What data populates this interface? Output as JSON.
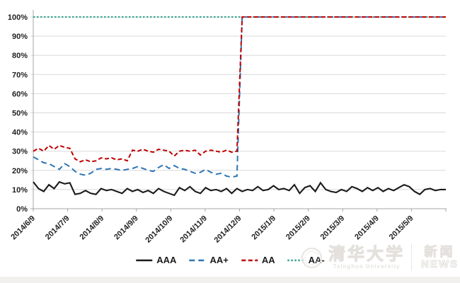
{
  "chart_data": {
    "type": "line",
    "title": "",
    "xlabel": "",
    "ylabel": "",
    "ylim": [
      0,
      100
    ],
    "grid": "horizontal",
    "legend_position": "bottom",
    "y_ticks": [
      "0%",
      "10%",
      "20%",
      "30%",
      "40%",
      "50%",
      "60%",
      "70%",
      "80%",
      "90%",
      "100%"
    ],
    "x_ticks": [
      "2014/6/9",
      "2014/7/9",
      "2014/8/9",
      "2014/9/9",
      "2014/10/9",
      "2014/11/9",
      "2014/12/9",
      "2015/1/9",
      "2015/2/9",
      "2015/3/9",
      "2015/4/9",
      "2015/5/9",
      ""
    ],
    "series": [
      {
        "name": "AAA",
        "color": "#1a1a1a",
        "dash": "solid",
        "values": [
          14,
          10.5,
          9,
          12.5,
          10.5,
          14,
          13,
          13.5,
          7.5,
          8,
          9.5,
          8,
          7.5,
          10.5,
          9.5,
          10,
          9,
          8,
          10.5,
          9,
          10,
          8.5,
          9.5,
          8,
          10.5,
          9,
          8,
          7,
          11,
          9.5,
          11.5,
          9,
          8,
          11,
          9.5,
          10,
          9,
          10.5,
          8,
          10.5,
          9,
          10,
          9.5,
          11.5,
          9.5,
          10,
          12,
          10,
          10.5,
          9.5,
          12.5,
          8,
          11,
          12,
          9,
          13.5,
          10,
          9,
          8.5,
          10,
          9,
          11.5,
          10.5,
          9,
          11,
          9.5,
          11,
          9,
          10.5,
          9.5,
          11,
          12.5,
          11.5,
          9,
          7.5,
          10,
          10.5,
          9.5,
          10,
          10
        ]
      },
      {
        "name": "AA+",
        "color": "#2E75B6",
        "dash": "8 5",
        "values": [
          27,
          25.5,
          24,
          23.5,
          22,
          20.5,
          23.5,
          22,
          19.5,
          18,
          17.5,
          18.5,
          20.5,
          21,
          20.5,
          21,
          20.5,
          20,
          20.5,
          21,
          22,
          21,
          20,
          19.5,
          21.5,
          23,
          21,
          22.5,
          21,
          20.5,
          19.5,
          18.5,
          19,
          20.5,
          19,
          18,
          18.5,
          17,
          16.5,
          17,
          100,
          100,
          100,
          100,
          100,
          100,
          100,
          100,
          100,
          100,
          100,
          100,
          100,
          100,
          100,
          100,
          100,
          100,
          100,
          100,
          100,
          100,
          100,
          100,
          100,
          100,
          100,
          100,
          100,
          100,
          100,
          100,
          100,
          100,
          100,
          100,
          100,
          100,
          100,
          100
        ]
      },
      {
        "name": "AA",
        "color": "#C00000",
        "dash": "6 3.5",
        "values": [
          30,
          31.5,
          30,
          33,
          31,
          33,
          32,
          31.5,
          26,
          24.5,
          25.5,
          24.5,
          25,
          26.5,
          26,
          26.5,
          25.5,
          26,
          25,
          30.5,
          30,
          31,
          30,
          29.5,
          31,
          30.5,
          30,
          27.5,
          30,
          30.5,
          30,
          30.5,
          28,
          30,
          30.5,
          30,
          29.5,
          30.5,
          29.5,
          30,
          100,
          100,
          100,
          100,
          100,
          100,
          100,
          100,
          100,
          100,
          100,
          100,
          100,
          100,
          100,
          100,
          100,
          100,
          100,
          100,
          100,
          100,
          100,
          100,
          100,
          100,
          100,
          100,
          100,
          100,
          100,
          100,
          100,
          100,
          100,
          100,
          100,
          100,
          100,
          100
        ]
      },
      {
        "name": "AA-",
        "color": "#32A391",
        "dash": "2.5 2.5",
        "values": [
          100,
          100,
          100,
          100,
          100,
          100,
          100,
          100,
          100,
          100,
          100,
          100,
          100,
          100,
          100,
          100,
          100,
          100,
          100,
          100,
          100,
          100,
          100,
          100,
          100,
          100,
          100,
          100,
          100,
          100,
          100,
          100,
          100,
          100,
          100,
          100,
          100,
          100,
          100,
          100,
          100,
          100,
          100,
          100,
          100,
          100,
          100,
          100,
          100,
          100,
          100,
          100,
          100,
          100,
          100,
          100,
          100,
          100,
          100,
          100,
          100,
          100,
          100,
          100,
          100,
          100,
          100,
          100,
          100,
          100,
          100,
          100,
          100,
          100,
          100,
          100,
          100,
          100,
          100,
          100
        ]
      }
    ]
  },
  "watermark": {
    "university_cn": "清华大学",
    "university_en": "Tsinghua University",
    "news_cn": "新闻",
    "news_en": "NEWS"
  }
}
